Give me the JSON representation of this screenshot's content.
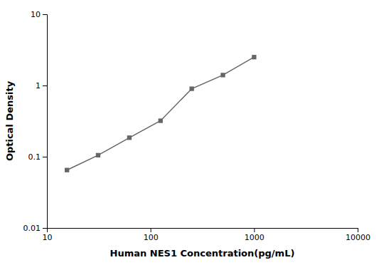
{
  "chart_data": {
    "type": "line",
    "x": [
      15.6,
      31.2,
      62.5,
      125,
      250,
      500,
      1000
    ],
    "values": [
      0.065,
      0.105,
      0.185,
      0.32,
      0.9,
      1.4,
      2.5
    ],
    "xlabel": "Human NES1 Concentration(pg/mL)",
    "ylabel": "Optical Density",
    "xlim": [
      10,
      10000
    ],
    "ylim": [
      0.01,
      10
    ],
    "xticks": [
      10,
      100,
      1000,
      10000
    ],
    "yticks": [
      0.01,
      0.1,
      1,
      10
    ],
    "log": true,
    "color": "#666666",
    "marker": "square",
    "grid": false
  }
}
